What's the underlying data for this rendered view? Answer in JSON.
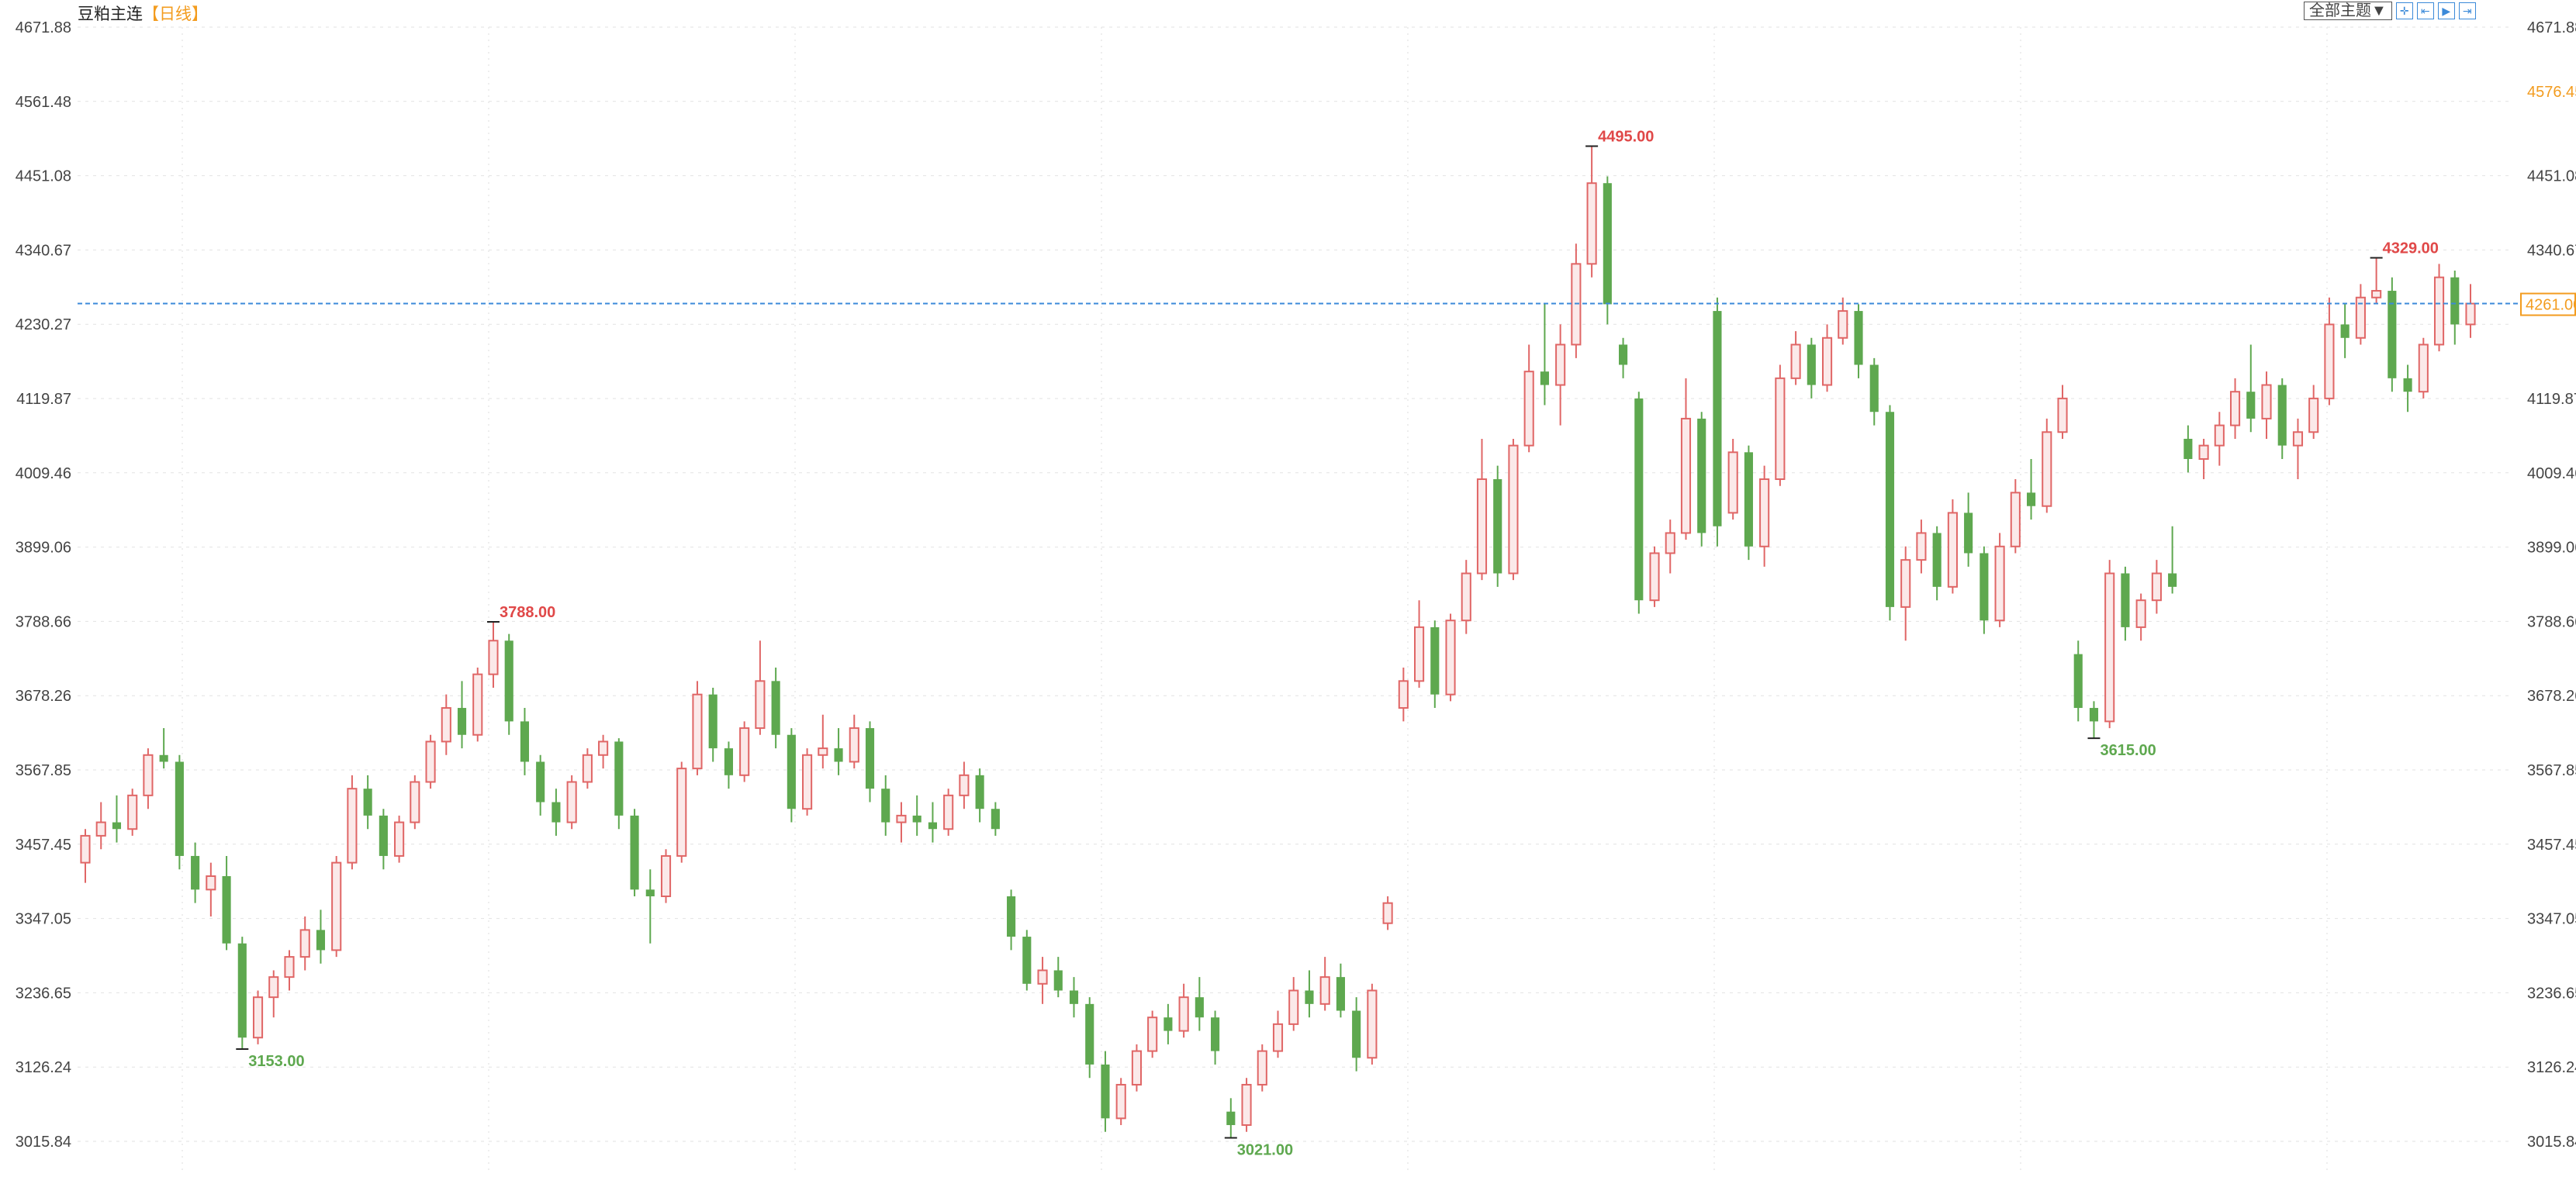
{
  "header": {
    "symbol": "豆粕主连",
    "period": "【日线】"
  },
  "toolbar": {
    "theme_label": "全部主题▼",
    "icons": [
      "crosshair-icon",
      "zoom-range-icon",
      "play-step-icon",
      "jump-latest-icon"
    ]
  },
  "colors": {
    "up": "#e06666",
    "up_fill": "#fbe9e9",
    "down": "#5ea84f",
    "current_line": "#3b8ad9",
    "current_label": "#f39c1f",
    "high_label": "#e04848",
    "low_label": "#5ea84f"
  },
  "chart_data": {
    "type": "candlestick",
    "ylim": [
      3015.84,
      4671.88
    ],
    "y_ticks": [
      "4671.88",
      "4561.48",
      "4451.08",
      "4340.67",
      "4230.27",
      "4119.87",
      "4009.46",
      "3899.06",
      "3788.66",
      "3678.26",
      "3567.85",
      "3457.45",
      "3347.05",
      "3236.65",
      "3126.24",
      "3015.84"
    ],
    "right_extra_label": {
      "value": "4576.45",
      "price": 4576.45
    },
    "current_price": {
      "value": "4261.00",
      "price": 4261.0
    },
    "grid": true,
    "annotations": [
      {
        "index": 10,
        "text": "3153.00",
        "price": 3153,
        "kind": "low"
      },
      {
        "index": 26,
        "text": "3788.00",
        "price": 3788,
        "kind": "high"
      },
      {
        "index": 73,
        "text": "3021.00",
        "price": 3021,
        "kind": "low"
      },
      {
        "index": 96,
        "text": "4495.00",
        "price": 4495,
        "kind": "high"
      },
      {
        "index": 128,
        "text": "3615.00",
        "price": 3615,
        "kind": "low"
      },
      {
        "index": 146,
        "text": "4329.00",
        "price": 4329,
        "kind": "high"
      }
    ],
    "ohlc": [
      [
        3430,
        3480,
        3400,
        3470
      ],
      [
        3470,
        3520,
        3450,
        3490
      ],
      [
        3490,
        3530,
        3460,
        3480
      ],
      [
        3480,
        3540,
        3470,
        3530
      ],
      [
        3530,
        3600,
        3510,
        3590
      ],
      [
        3590,
        3630,
        3570,
        3580
      ],
      [
        3580,
        3590,
        3420,
        3440
      ],
      [
        3440,
        3460,
        3370,
        3390
      ],
      [
        3390,
        3430,
        3350,
        3410
      ],
      [
        3410,
        3440,
        3300,
        3310
      ],
      [
        3310,
        3320,
        3153,
        3170
      ],
      [
        3170,
        3240,
        3160,
        3230
      ],
      [
        3230,
        3270,
        3200,
        3260
      ],
      [
        3260,
        3300,
        3240,
        3290
      ],
      [
        3290,
        3350,
        3270,
        3330
      ],
      [
        3330,
        3360,
        3280,
        3300
      ],
      [
        3300,
        3440,
        3290,
        3430
      ],
      [
        3430,
        3560,
        3420,
        3540
      ],
      [
        3540,
        3560,
        3480,
        3500
      ],
      [
        3500,
        3510,
        3420,
        3440
      ],
      [
        3440,
        3500,
        3430,
        3490
      ],
      [
        3490,
        3560,
        3480,
        3550
      ],
      [
        3550,
        3620,
        3540,
        3610
      ],
      [
        3610,
        3680,
        3590,
        3660
      ],
      [
        3660,
        3700,
        3600,
        3620
      ],
      [
        3620,
        3720,
        3610,
        3710
      ],
      [
        3710,
        3788,
        3690,
        3760
      ],
      [
        3760,
        3770,
        3620,
        3640
      ],
      [
        3640,
        3660,
        3560,
        3580
      ],
      [
        3580,
        3590,
        3500,
        3520
      ],
      [
        3520,
        3540,
        3470,
        3490
      ],
      [
        3490,
        3560,
        3480,
        3550
      ],
      [
        3550,
        3600,
        3540,
        3590
      ],
      [
        3590,
        3620,
        3570,
        3610
      ],
      [
        3610,
        3615,
        3480,
        3500
      ],
      [
        3500,
        3510,
        3380,
        3390
      ],
      [
        3390,
        3420,
        3310,
        3380
      ],
      [
        3380,
        3450,
        3370,
        3440
      ],
      [
        3440,
        3580,
        3430,
        3570
      ],
      [
        3570,
        3700,
        3560,
        3680
      ],
      [
        3680,
        3690,
        3580,
        3600
      ],
      [
        3600,
        3610,
        3540,
        3560
      ],
      [
        3560,
        3640,
        3550,
        3630
      ],
      [
        3630,
        3760,
        3620,
        3700
      ],
      [
        3700,
        3720,
        3600,
        3620
      ],
      [
        3620,
        3630,
        3490,
        3510
      ],
      [
        3510,
        3600,
        3500,
        3590
      ],
      [
        3590,
        3650,
        3570,
        3600
      ],
      [
        3600,
        3630,
        3560,
        3580
      ],
      [
        3580,
        3650,
        3570,
        3630
      ],
      [
        3630,
        3640,
        3520,
        3540
      ],
      [
        3540,
        3560,
        3470,
        3490
      ],
      [
        3490,
        3520,
        3460,
        3500
      ],
      [
        3500,
        3530,
        3470,
        3490
      ],
      [
        3490,
        3520,
        3460,
        3480
      ],
      [
        3480,
        3540,
        3470,
        3530
      ],
      [
        3530,
        3580,
        3510,
        3560
      ],
      [
        3560,
        3570,
        3490,
        3510
      ],
      [
        3510,
        3520,
        3470,
        3480
      ],
      [
        3380,
        3390,
        3300,
        3320
      ],
      [
        3320,
        3330,
        3240,
        3250
      ],
      [
        3250,
        3290,
        3220,
        3270
      ],
      [
        3270,
        3290,
        3230,
        3240
      ],
      [
        3240,
        3260,
        3200,
        3220
      ],
      [
        3220,
        3230,
        3110,
        3130
      ],
      [
        3130,
        3150,
        3030,
        3050
      ],
      [
        3050,
        3110,
        3040,
        3100
      ],
      [
        3100,
        3160,
        3090,
        3150
      ],
      [
        3150,
        3210,
        3140,
        3200
      ],
      [
        3200,
        3220,
        3160,
        3180
      ],
      [
        3180,
        3250,
        3170,
        3230
      ],
      [
        3230,
        3260,
        3180,
        3200
      ],
      [
        3200,
        3210,
        3130,
        3150
      ],
      [
        3060,
        3080,
        3021,
        3040
      ],
      [
        3040,
        3110,
        3030,
        3100
      ],
      [
        3100,
        3160,
        3090,
        3150
      ],
      [
        3150,
        3210,
        3140,
        3190
      ],
      [
        3190,
        3260,
        3180,
        3240
      ],
      [
        3240,
        3270,
        3200,
        3220
      ],
      [
        3220,
        3290,
        3210,
        3260
      ],
      [
        3260,
        3280,
        3200,
        3210
      ],
      [
        3210,
        3230,
        3120,
        3140
      ],
      [
        3140,
        3250,
        3130,
        3240
      ],
      [
        3340,
        3380,
        3330,
        3370
      ],
      [
        3660,
        3720,
        3640,
        3700
      ],
      [
        3700,
        3820,
        3690,
        3780
      ],
      [
        3780,
        3790,
        3660,
        3680
      ],
      [
        3680,
        3800,
        3670,
        3790
      ],
      [
        3790,
        3880,
        3770,
        3860
      ],
      [
        3860,
        4060,
        3850,
        4000
      ],
      [
        4000,
        4020,
        3840,
        3860
      ],
      [
        3860,
        4060,
        3850,
        4050
      ],
      [
        4050,
        4200,
        4040,
        4160
      ],
      [
        4160,
        4260,
        4110,
        4140
      ],
      [
        4140,
        4230,
        4080,
        4200
      ],
      [
        4200,
        4350,
        4180,
        4320
      ],
      [
        4320,
        4495,
        4300,
        4440
      ],
      [
        4440,
        4450,
        4230,
        4260
      ],
      [
        4200,
        4210,
        4150,
        4170
      ],
      [
        4120,
        4130,
        3800,
        3820
      ],
      [
        3820,
        3900,
        3810,
        3890
      ],
      [
        3890,
        3940,
        3860,
        3920
      ],
      [
        3920,
        4150,
        3910,
        4090
      ],
      [
        4090,
        4100,
        3900,
        3920
      ],
      [
        4250,
        4270,
        3900,
        3930
      ],
      [
        3950,
        4060,
        3940,
        4040
      ],
      [
        4040,
        4050,
        3880,
        3900
      ],
      [
        3900,
        4020,
        3870,
        4000
      ],
      [
        4000,
        4170,
        3990,
        4150
      ],
      [
        4150,
        4220,
        4140,
        4200
      ],
      [
        4200,
        4210,
        4120,
        4140
      ],
      [
        4140,
        4230,
        4130,
        4210
      ],
      [
        4210,
        4270,
        4200,
        4250
      ],
      [
        4250,
        4260,
        4150,
        4170
      ],
      [
        4170,
        4180,
        4080,
        4100
      ],
      [
        4100,
        4110,
        3790,
        3810
      ],
      [
        3810,
        3900,
        3760,
        3880
      ],
      [
        3880,
        3940,
        3860,
        3920
      ],
      [
        3920,
        3930,
        3820,
        3840
      ],
      [
        3840,
        3970,
        3830,
        3950
      ],
      [
        3950,
        3980,
        3870,
        3890
      ],
      [
        3890,
        3900,
        3770,
        3790
      ],
      [
        3790,
        3920,
        3780,
        3900
      ],
      [
        3900,
        4000,
        3890,
        3980
      ],
      [
        3980,
        4030,
        3940,
        3960
      ],
      [
        3960,
        4090,
        3950,
        4070
      ],
      [
        4070,
        4140,
        4060,
        4120
      ],
      [
        3740,
        3760,
        3640,
        3660
      ],
      [
        3660,
        3670,
        3615,
        3640
      ],
      [
        3640,
        3880,
        3630,
        3860
      ],
      [
        3860,
        3870,
        3760,
        3780
      ],
      [
        3780,
        3830,
        3760,
        3820
      ],
      [
        3820,
        3880,
        3800,
        3860
      ],
      [
        3860,
        3930,
        3830,
        3840
      ],
      [
        4060,
        4080,
        4010,
        4030
      ],
      [
        4030,
        4060,
        4000,
        4050
      ],
      [
        4050,
        4100,
        4020,
        4080
      ],
      [
        4080,
        4150,
        4060,
        4130
      ],
      [
        4130,
        4200,
        4070,
        4090
      ],
      [
        4090,
        4160,
        4060,
        4140
      ],
      [
        4140,
        4150,
        4030,
        4050
      ],
      [
        4050,
        4090,
        4000,
        4070
      ],
      [
        4070,
        4140,
        4060,
        4120
      ],
      [
        4120,
        4270,
        4110,
        4230
      ],
      [
        4230,
        4260,
        4180,
        4210
      ],
      [
        4210,
        4290,
        4200,
        4270
      ],
      [
        4270,
        4329,
        4260,
        4280
      ],
      [
        4280,
        4300,
        4130,
        4150
      ],
      [
        4150,
        4170,
        4100,
        4130
      ],
      [
        4130,
        4210,
        4120,
        4200
      ],
      [
        4200,
        4320,
        4190,
        4300
      ],
      [
        4300,
        4310,
        4200,
        4230
      ],
      [
        4230,
        4290,
        4210,
        4261
      ]
    ]
  }
}
